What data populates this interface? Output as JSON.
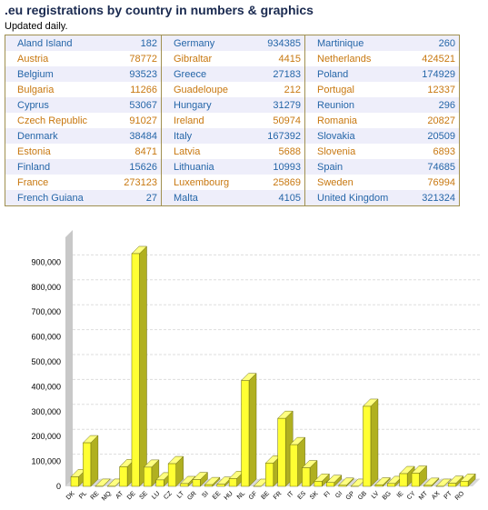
{
  "header": {
    "title": ".eu registrations by country in numbers & graphics",
    "subtitle": "Updated daily."
  },
  "table": {
    "columns": [
      [
        [
          "Aland Island",
          182
        ],
        [
          "Austria",
          78772
        ],
        [
          "Belgium",
          93523
        ],
        [
          "Bulgaria",
          11266
        ],
        [
          "Cyprus",
          53067
        ],
        [
          "Czech Republic",
          91027
        ],
        [
          "Denmark",
          38484
        ],
        [
          "Estonia",
          8471
        ],
        [
          "Finland",
          15626
        ],
        [
          "France",
          273123
        ],
        [
          "French Guiana",
          27
        ]
      ],
      [
        [
          "Germany",
          934385
        ],
        [
          "Gibraltar",
          4415
        ],
        [
          "Greece",
          27183
        ],
        [
          "Guadeloupe",
          212
        ],
        [
          "Hungary",
          31279
        ],
        [
          "Ireland",
          50974
        ],
        [
          "Italy",
          167392
        ],
        [
          "Latvia",
          5688
        ],
        [
          "Lithuania",
          10993
        ],
        [
          "Luxembourg",
          25869
        ],
        [
          "Malta",
          4105
        ]
      ],
      [
        [
          "Martinique",
          260
        ],
        [
          "Netherlands",
          424521
        ],
        [
          "Poland",
          174929
        ],
        [
          "Portugal",
          12337
        ],
        [
          "Reunion",
          296
        ],
        [
          "Romania",
          20827
        ],
        [
          "Slovakia",
          20509
        ],
        [
          "Slovenia",
          6893
        ],
        [
          "Spain",
          74685
        ],
        [
          "Sweden",
          76994
        ],
        [
          "United Kingdom",
          321324
        ]
      ]
    ]
  },
  "chart_data": {
    "type": "bar",
    "categories": [
      "DK",
      "PL",
      "RE",
      "MQ",
      "AT",
      "DE",
      "SE",
      "LU",
      "CZ",
      "LT",
      "GR",
      "SI",
      "EE",
      "HU",
      "NL",
      "GF",
      "BE",
      "FR",
      "IT",
      "ES",
      "SK",
      "FI",
      "GI",
      "GP",
      "GB",
      "LV",
      "BG",
      "IE",
      "CY",
      "MT",
      "AX",
      "PT",
      "RO"
    ],
    "values": [
      38484,
      174929,
      296,
      260,
      78772,
      934385,
      76994,
      25869,
      91027,
      10993,
      27183,
      6893,
      8471,
      31279,
      424521,
      27,
      93523,
      273123,
      167392,
      74685,
      20509,
      15626,
      4415,
      212,
      321324,
      5688,
      11266,
      50974,
      53067,
      4105,
      182,
      12337,
      20827
    ],
    "color": "#ffff33",
    "ylim": [
      0,
      1000000
    ],
    "yticks": [
      0,
      {
        "value": 100000,
        "label": "100,000"
      },
      {
        "value": 200000,
        "label": "200,000"
      },
      {
        "value": 300000,
        "label": "300,000"
      },
      {
        "value": 400000,
        "label": "400,000"
      },
      {
        "value": 500000,
        "label": "500,000"
      },
      {
        "value": 600000,
        "label": "600,000"
      },
      {
        "value": 700000,
        "label": "700,000"
      },
      {
        "value": 800000,
        "label": "800,000"
      },
      {
        "value": 900000,
        "label": "900,000"
      }
    ],
    "grid": true
  }
}
